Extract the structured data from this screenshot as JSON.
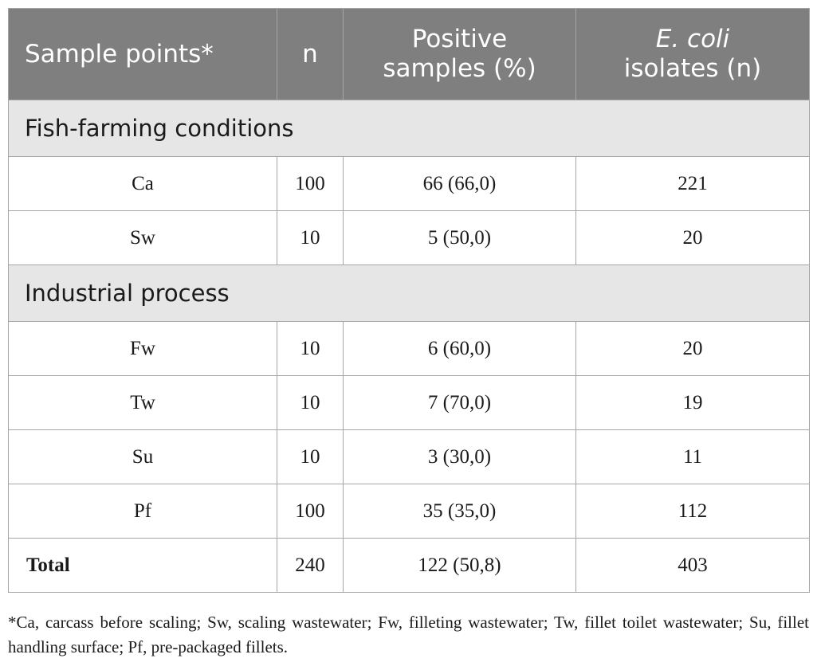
{
  "table": {
    "headers": {
      "sample_points": "Sample points*",
      "n": "n",
      "positive_line1": "Positive",
      "positive_line2": "samples (%)",
      "ecoli_italic": "E. coli",
      "ecoli_line2": "isolates (n)"
    },
    "sections": [
      {
        "title": "Fish-farming conditions",
        "rows": [
          {
            "point": "Ca",
            "n": "100",
            "positive": "66 (66,0)",
            "isolates": "221"
          },
          {
            "point": "Sw",
            "n": "10",
            "positive": "5 (50,0)",
            "isolates": "20"
          }
        ]
      },
      {
        "title": "Industrial process",
        "rows": [
          {
            "point": "Fw",
            "n": "10",
            "positive": "6 (60,0)",
            "isolates": "20"
          },
          {
            "point": "Tw",
            "n": "10",
            "positive": "7 (70,0)",
            "isolates": "19"
          },
          {
            "point": "Su",
            "n": "10",
            "positive": "3 (30,0)",
            "isolates": "11"
          },
          {
            "point": "Pf",
            "n": "100",
            "positive": "35 (35,0)",
            "isolates": "112"
          }
        ]
      }
    ],
    "total": {
      "label": "Total",
      "n": "240",
      "positive": "122 (50,8)",
      "isolates": "403"
    }
  },
  "footnote": "*Ca, carcass before scaling; Sw, scaling wastewater; Fw, filleting wastewater; Tw, fillet toilet wastewater; Su, fillet handling surface; Pf, pre-packaged fillets.",
  "colors": {
    "header_bg": "#7f7f7f",
    "section_bg": "#e6e6e6",
    "border": "#a6a6a6"
  }
}
